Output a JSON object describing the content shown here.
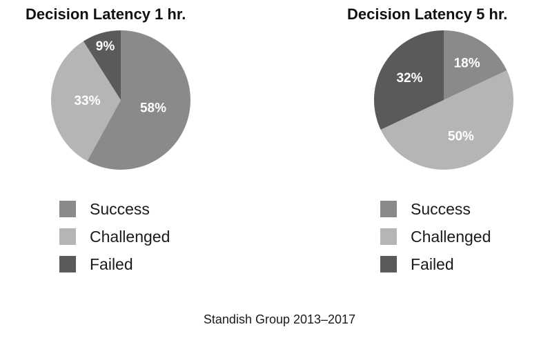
{
  "colors": {
    "Success": "#8a8a8a",
    "Challenged": "#b5b5b7",
    "Failed": "#5a5a5a"
  },
  "chart_data": [
    {
      "type": "pie",
      "title": "Decision Latency 1 hr.",
      "categories": [
        "Success",
        "Challenged",
        "Failed"
      ],
      "values": [
        58,
        33,
        9
      ],
      "labels": [
        "58%",
        "33%",
        "9%"
      ],
      "legend": [
        "Success",
        "Challenged",
        "Failed"
      ],
      "legend_position": "bottom"
    },
    {
      "type": "pie",
      "title": "Decision Latency 5 hr.",
      "categories": [
        "Success",
        "Challenged",
        "Failed"
      ],
      "values": [
        18,
        50,
        32
      ],
      "labels": [
        "18%",
        "50%",
        "32%"
      ],
      "legend": [
        "Success",
        "Challenged",
        "Failed"
      ],
      "legend_position": "bottom"
    }
  ],
  "source": "Standish Group 2013–2017"
}
